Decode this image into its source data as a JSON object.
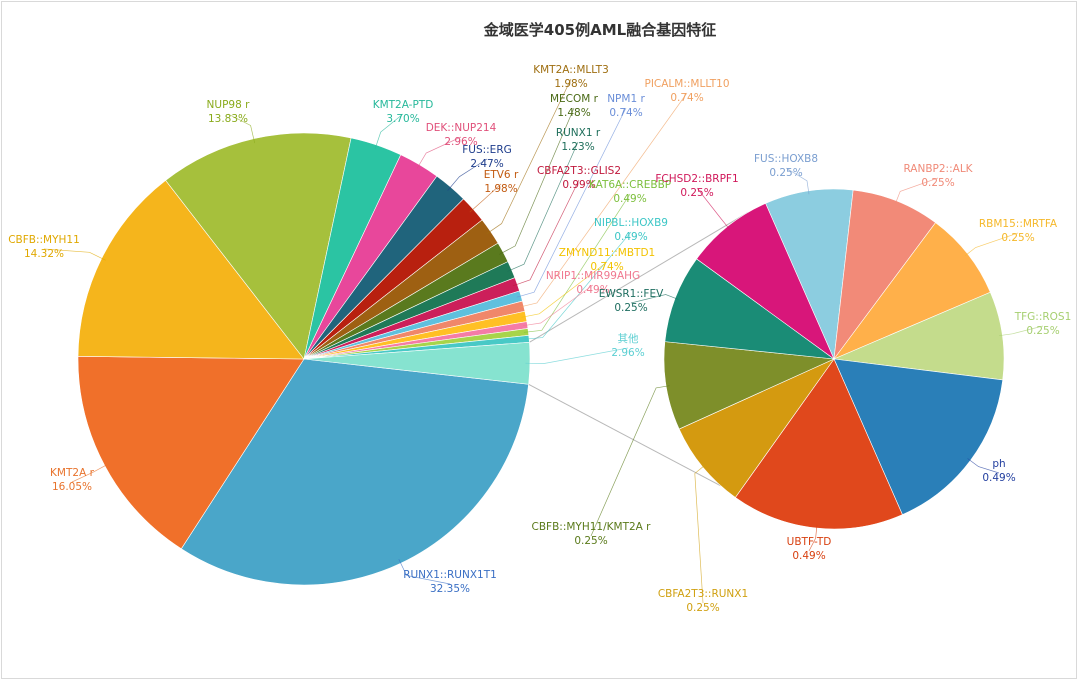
{
  "chart_data": {
    "type": "pie",
    "title": "金域医学405例AML融合基因特征",
    "main_pie": [
      {
        "label": "RUNX1::RUNX1T1",
        "value": 32.35,
        "value_label": "32.35%",
        "color": "#4aa6c9"
      },
      {
        "label": "KMT2A r",
        "value": 16.05,
        "value_label": "16.05%",
        "color": "#f0702a"
      },
      {
        "label": "CBFB::MYH11",
        "value": 14.32,
        "value_label": "14.32%",
        "color": "#f5b51c"
      },
      {
        "label": "NUP98 r",
        "value": 13.83,
        "value_label": "13.83%",
        "color": "#a6c03c"
      },
      {
        "label": "KMT2A-PTD",
        "value": 3.7,
        "value_label": "3.70%",
        "color": "#2bc4a3"
      },
      {
        "label": "DEK::NUP214",
        "value": 2.96,
        "value_label": "2.96%",
        "color": "#e8479b"
      },
      {
        "label": "FUS::ERG",
        "value": 2.47,
        "value_label": "2.47%",
        "color": "#20647c"
      },
      {
        "label": "ETV6 r",
        "value": 1.98,
        "value_label": "1.98%",
        "color": "#b8200f"
      },
      {
        "label": "KMT2A::MLLT3",
        "value": 1.98,
        "value_label": "1.98%",
        "color": "#9e6012"
      },
      {
        "label": "MECOM r",
        "value": 1.48,
        "value_label": "1.48%",
        "color": "#5a7a1e"
      },
      {
        "label": "RUNX1 r",
        "value": 1.23,
        "value_label": "1.23%",
        "color": "#1f7a58"
      },
      {
        "label": "CBFA2T3::GLIS2",
        "value": 0.99,
        "value_label": "0.99%",
        "color": "#cc1f5a"
      },
      {
        "label": "NPM1 r",
        "value": 0.74,
        "value_label": "0.74%",
        "color": "#5fc0dd"
      },
      {
        "label": "PICALM::MLLT10",
        "value": 0.74,
        "value_label": "0.74%",
        "color": "#f0876a"
      },
      {
        "label": "ZMYND11::MBTD1",
        "value": 0.74,
        "value_label": "0.74%",
        "color": "#ffc024"
      },
      {
        "label": "NRIP1::MIR99AHG",
        "value": 0.49,
        "value_label": "0.49%",
        "color": "#f57ca6"
      },
      {
        "label": "KAT6A::CREBBP",
        "value": 0.49,
        "value_label": "0.49%",
        "color": "#a8d44a"
      },
      {
        "label": "NIPBL::HOXB9",
        "value": 0.49,
        "value_label": "0.49%",
        "color": "#48c9c6"
      },
      {
        "label": "其他",
        "value": 2.96,
        "value_label": "2.96%",
        "color": "#86e3d0"
      }
    ],
    "main_labels": [
      {
        "text": "RUNX1::RUNX1T1",
        "value": "32.35%",
        "color": "#3a6fc4"
      },
      {
        "text": "KMT2A r",
        "value": "16.05%",
        "color": "#e8732c"
      },
      {
        "text": "CBFB::MYH11",
        "value": "14.32%",
        "color": "#e0a800"
      },
      {
        "text": "NUP98 r",
        "value": "13.83%",
        "color": "#8aab1c"
      },
      {
        "text": "KMT2A-PTD",
        "value": "3.70%",
        "color": "#26b89a"
      },
      {
        "text": "DEK::NUP214",
        "value": "2.96%",
        "color": "#e0507a"
      },
      {
        "text": "FUS::ERG",
        "value": "2.47%",
        "color": "#1e3d8c"
      },
      {
        "text": "ETV6 r",
        "value": "1.98%",
        "color": "#c25a10"
      },
      {
        "text": "KMT2A::MLLT3",
        "value": "1.98%",
        "color": "#9e6e10"
      },
      {
        "text": "MECOM r",
        "value": "1.48%",
        "color": "#4a6a16"
      },
      {
        "text": "RUNX1 r",
        "value": "1.23%",
        "color": "#1e6e5a"
      },
      {
        "text": "NPM1 r",
        "value": "0.74%",
        "color": "#6a8ed8"
      },
      {
        "text": "PICALM::MLLT10",
        "value": "0.74%",
        "color": "#f0a060"
      },
      {
        "text": "CBFA2T3::GLIS2",
        "value": "0.99%",
        "color": "#c0183c"
      },
      {
        "text": "KAT6A::CREBBP",
        "value": "0.49%",
        "color": "#7cbf3c"
      },
      {
        "text": "NIPBL::HOXB9",
        "value": "0.49%",
        "color": "#3cc6c6"
      },
      {
        "text": "ZMYND11::MBTD1",
        "value": "0.74%",
        "color": "#f2c200"
      },
      {
        "text": "NRIP1::MIR99AHG",
        "value": "0.49%",
        "color": "#f07890"
      },
      {
        "text": "其他",
        "value": "2.96%",
        "color": "#5ccfd2"
      }
    ],
    "sub_pie": [
      {
        "label": "FUS::HOXB8",
        "value": 0.25,
        "value_label": "0.25%",
        "color": "#8ccde0"
      },
      {
        "label": "RANBP2::ALK",
        "value": 0.25,
        "value_label": "0.25%",
        "color": "#f28a78"
      },
      {
        "label": "RBM15::MRTFA",
        "value": 0.25,
        "value_label": "0.25%",
        "color": "#ffb04a"
      },
      {
        "label": "TFG::ROS1",
        "value": 0.25,
        "value_label": "0.25%",
        "color": "#c4dc8c"
      },
      {
        "label": "ph",
        "value": 0.49,
        "value_label": "0.49%",
        "color": "#2a7fb8"
      },
      {
        "label": "UBTF-TD",
        "value": 0.49,
        "value_label": "0.49%",
        "color": "#e0481c"
      },
      {
        "label": "CBFA2T3::RUNX1",
        "value": 0.25,
        "value_label": "0.25%",
        "color": "#d49a10"
      },
      {
        "label": "CBFB::MYH11/KMT2A r",
        "value": 0.25,
        "value_label": "0.25%",
        "color": "#7e8f2a"
      },
      {
        "label": "EWSR1::FEV",
        "value": 0.25,
        "value_label": "0.25%",
        "color": "#1a8c76"
      },
      {
        "label": "FCHSD2::BRPF1",
        "value": 0.25,
        "value_label": "0.25%",
        "color": "#d8167a"
      }
    ],
    "sub_labels": [
      {
        "text": "FUS::HOXB8",
        "value": "0.25%",
        "color": "#7a9ed0"
      },
      {
        "text": "RANBP2::ALK",
        "value": "0.25%",
        "color": "#f08a78"
      },
      {
        "text": "RBM15::MRTFA",
        "value": "0.25%",
        "color": "#f5b82a"
      },
      {
        "text": "TFG::ROS1",
        "value": "0.25%",
        "color": "#a6cf70"
      },
      {
        "text": "ph",
        "value": "0.49%",
        "color": "#2440a0"
      },
      {
        "text": "UBTF-TD",
        "value": "0.49%",
        "color": "#d84010"
      },
      {
        "text": "CBFA2T3::RUNX1",
        "value": "0.25%",
        "color": "#d0a010"
      },
      {
        "text": "CBFB::MYH11/KMT2A r",
        "value": "0.25%",
        "color": "#5a7a1a"
      },
      {
        "text": "EWSR1::FEV",
        "value": "0.25%",
        "color": "#1e6e60"
      },
      {
        "text": "FCHSD2::BRPF1",
        "value": "0.25%",
        "color": "#d0185a"
      }
    ],
    "legend": "none"
  }
}
